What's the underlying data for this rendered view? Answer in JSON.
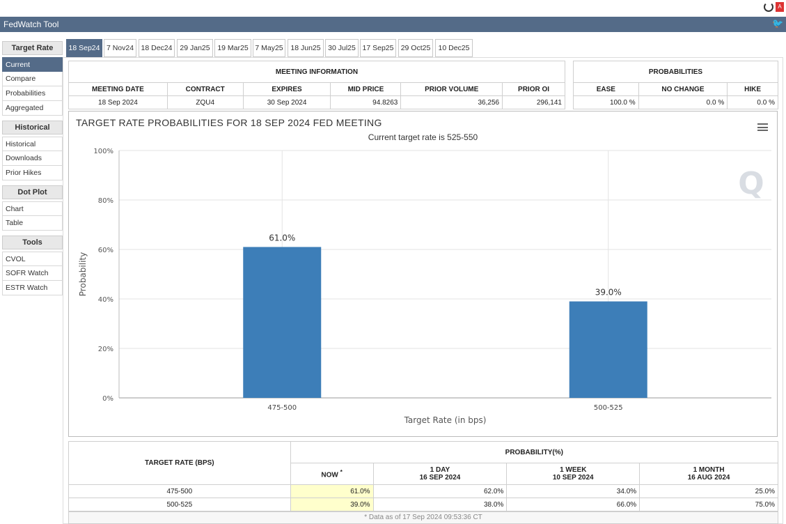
{
  "app": {
    "title": "FedWatch Tool"
  },
  "sidebar": {
    "sections": [
      {
        "header": "Target Rate",
        "items": [
          {
            "label": "Current",
            "active": true
          },
          {
            "label": "Compare"
          },
          {
            "label": "Probabilities"
          },
          {
            "label": "Aggregated"
          }
        ]
      },
      {
        "header": "Historical",
        "items": [
          {
            "label": "Historical"
          },
          {
            "label": "Downloads"
          },
          {
            "label": "Prior Hikes"
          }
        ]
      },
      {
        "header": "Dot Plot",
        "items": [
          {
            "label": "Chart"
          },
          {
            "label": "Table"
          }
        ]
      },
      {
        "header": "Tools",
        "items": [
          {
            "label": "CVOL"
          },
          {
            "label": "SOFR Watch"
          },
          {
            "label": "ESTR Watch"
          }
        ]
      }
    ]
  },
  "tabs": [
    "18 Sep24",
    "7 Nov24",
    "18 Dec24",
    "29 Jan25",
    "19 Mar25",
    "7 May25",
    "18 Jun25",
    "30 Jul25",
    "17 Sep25",
    "29 Oct25",
    "10 Dec25"
  ],
  "meeting_info": {
    "title": "MEETING INFORMATION",
    "headers": [
      "MEETING DATE",
      "CONTRACT",
      "EXPIRES",
      "MID PRICE",
      "PRIOR VOLUME",
      "PRIOR OI"
    ],
    "values": [
      "18 Sep 2024",
      "ZQU4",
      "30 Sep 2024",
      "94.8263",
      "36,256",
      "296,141"
    ]
  },
  "probabilities": {
    "title": "PROBABILITIES",
    "headers": [
      "EASE",
      "NO CHANGE",
      "HIKE"
    ],
    "values": [
      "100.0 %",
      "0.0 %",
      "0.0 %"
    ]
  },
  "chart_data": {
    "type": "bar",
    "title": "TARGET RATE PROBABILITIES FOR 18 SEP 2024 FED MEETING",
    "subtitle": "Current target rate is 525-550",
    "xlabel": "Target Rate (in bps)",
    "ylabel": "Probability",
    "categories": [
      "475-500",
      "500-525"
    ],
    "values": [
      61.0,
      39.0
    ],
    "data_labels": [
      "61.0%",
      "39.0%"
    ],
    "ylim": [
      0,
      100
    ],
    "yticks": [
      "0%",
      "20%",
      "40%",
      "60%",
      "80%",
      "100%"
    ],
    "grid": true,
    "bar_color": "#3d7eb8",
    "watermark": "Q"
  },
  "prob_table": {
    "col_target": "TARGET RATE (BPS)",
    "col_group": "PROBABILITY(%)",
    "now_label": "NOW",
    "now_mark": "*",
    "col_1day": "1 DAY",
    "col_1day_date": "16 SEP 2024",
    "col_1week": "1 WEEK",
    "col_1week_date": "10 SEP 2024",
    "col_1month": "1 MONTH",
    "col_1month_date": "16 AUG 2024",
    "rows": [
      [
        "475-500",
        "61.0%",
        "62.0%",
        "34.0%",
        "25.0%"
      ],
      [
        "500-525",
        "39.0%",
        "38.0%",
        "66.0%",
        "75.0%"
      ]
    ],
    "footnote": "* Data as of 17 Sep 2024 09:53:36 CT"
  },
  "colors": {
    "accent": "#546b88",
    "bar": "#3d7eb8",
    "now_highlight": "#ffffcc"
  }
}
